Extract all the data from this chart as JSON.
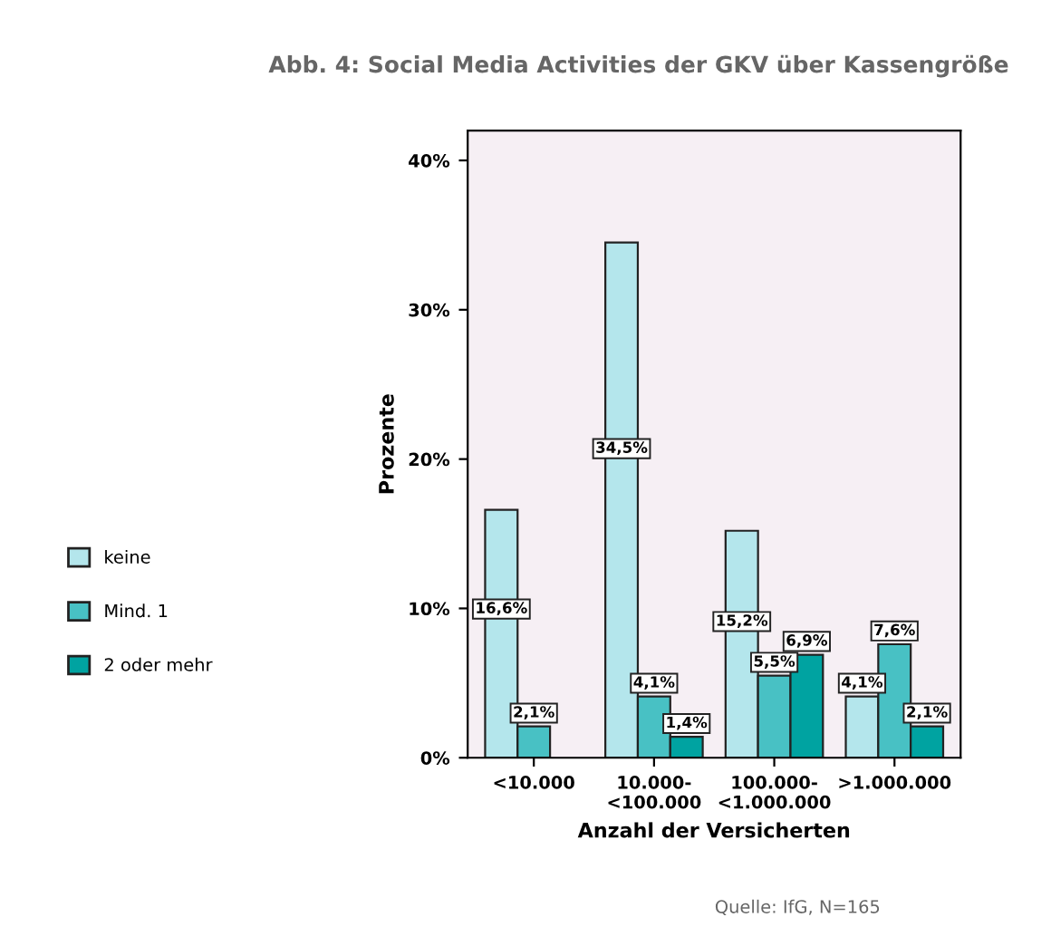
{
  "chart_data": {
    "type": "bar",
    "title": "Abb. 4: Social Media Activities der GKV über Kassengröße",
    "xlabel": "Anzahl der Versicherten",
    "ylabel": "Prozente",
    "categories": [
      "<10.000",
      "10.000-\n<100.000",
      "100.000-\n<1.000.000",
      ">1.000.000"
    ],
    "series": [
      {
        "name": "keine",
        "color": "#b4e6ec",
        "values": [
          16.6,
          34.5,
          15.2,
          4.1
        ],
        "value_labels": [
          "16,6%",
          "34,5%",
          "15,2%",
          "4,1%"
        ]
      },
      {
        "name": "Mind. 1",
        "color": "#48c1c4",
        "values": [
          2.1,
          4.1,
          5.5,
          7.6
        ],
        "value_labels": [
          "2,1%",
          "4,1%",
          "5,5%",
          "7,6%"
        ]
      },
      {
        "name": "2 oder mehr",
        "color": "#00a3a1",
        "values": [
          null,
          1.4,
          6.9,
          2.1
        ],
        "value_labels": [
          null,
          "1,4%",
          "6,9%",
          "2,1%"
        ]
      }
    ],
    "ylim": [
      0,
      42
    ],
    "yticks": [
      {
        "value": 0,
        "label": "0%"
      },
      {
        "value": 10,
        "label": "10%"
      },
      {
        "value": 20,
        "label": "20%"
      },
      {
        "value": 30,
        "label": "30%"
      },
      {
        "value": 40,
        "label": "40%"
      }
    ],
    "grid": false,
    "legend": "left",
    "annotations": [
      "Quelle: IfG, N=165"
    ]
  }
}
